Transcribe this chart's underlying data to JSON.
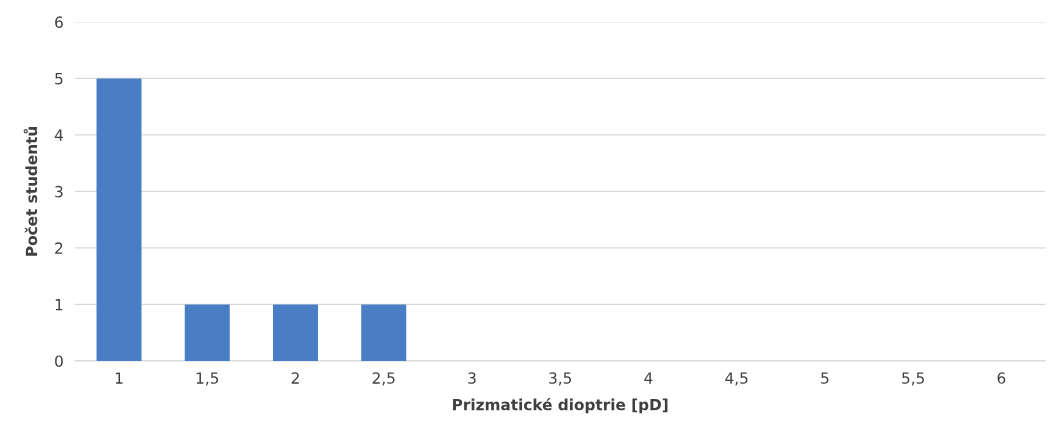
{
  "chart_data": {
    "type": "bar",
    "xlabel": "Prizmatické dioptrie [pD]",
    "ylabel": "Počet studentů",
    "categories": [
      "1",
      "1,5",
      "2",
      "2,5",
      "3",
      "3,5",
      "4",
      "4,5",
      "5",
      "5,5",
      "6"
    ],
    "values": [
      5,
      1,
      1,
      1,
      0,
      0,
      0,
      0,
      0,
      0,
      0
    ],
    "color": "#4a7ec4",
    "ylim": [
      0,
      6
    ],
    "yticks": [
      0,
      1,
      2,
      3,
      4,
      5,
      6
    ],
    "grid": "y",
    "legend": false
  }
}
